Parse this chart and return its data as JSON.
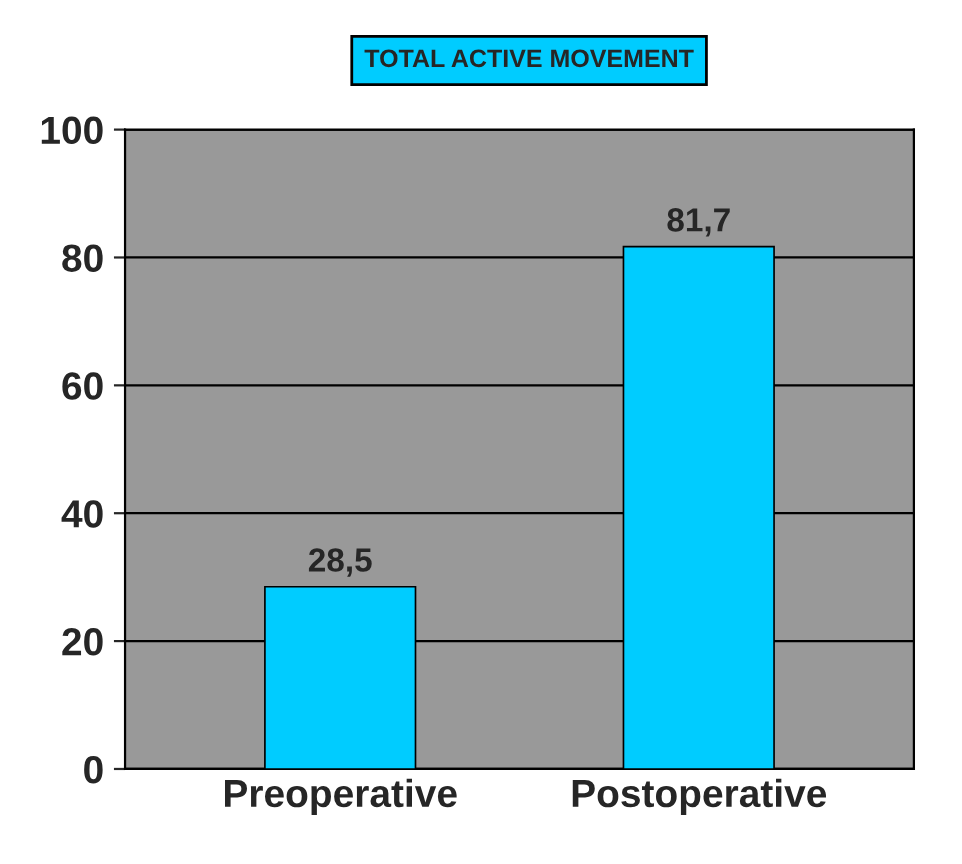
{
  "chart_data": {
    "type": "bar",
    "title": "TOTAL ACTIVE MOVEMENT",
    "categories": [
      "Preoperative",
      "Postoperative"
    ],
    "values": [
      28.5,
      81.7
    ],
    "value_labels": [
      "28,5",
      "81,7"
    ],
    "color": "#00ccff",
    "ylim": [
      0,
      100
    ],
    "yticks": [
      0,
      20,
      40,
      60,
      80,
      100
    ],
    "grid": "y"
  }
}
